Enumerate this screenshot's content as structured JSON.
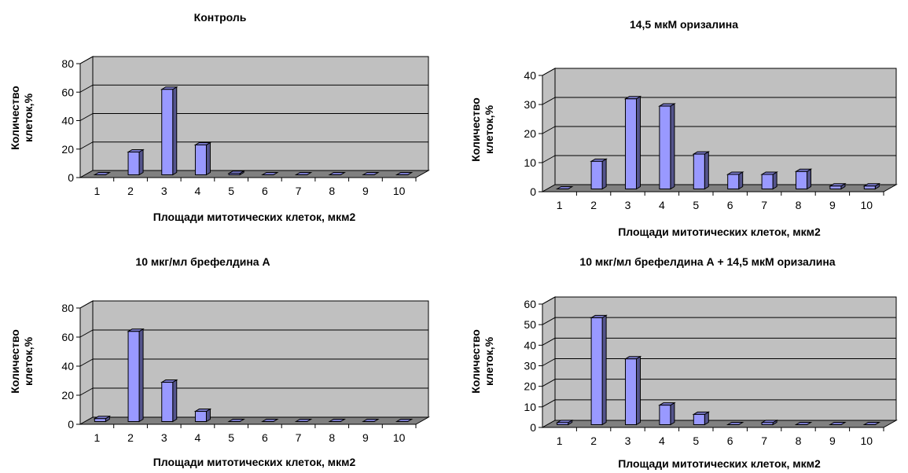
{
  "chart_data": [
    {
      "type": "bar",
      "title": "Контроль",
      "xlabel": "Площади митотических клеток, мкм2",
      "ylabel": [
        "Количество",
        "клеток,%"
      ],
      "ylim": [
        0,
        80
      ],
      "yticks": [
        "0",
        "20",
        "40",
        "60",
        "80"
      ],
      "categories": [
        "1",
        "2",
        "3",
        "4",
        "5",
        "6",
        "7",
        "8",
        "9",
        "10"
      ],
      "values": [
        0,
        16,
        60,
        21,
        1,
        0,
        0,
        0,
        0,
        0
      ],
      "grid": true,
      "colors": {
        "bar": "#9999ff",
        "plot_bg": "#c0c0c0",
        "floor": "#808080"
      }
    },
    {
      "type": "bar",
      "title": "14,5 мкМ оризалина",
      "xlabel": "Площади митотических клеток, мкм2",
      "ylabel": [
        "Количество",
        "клеток,%"
      ],
      "ylim": [
        0,
        40
      ],
      "yticks": [
        "0",
        "10",
        "20",
        "30",
        "40"
      ],
      "categories": [
        "1",
        "2",
        "3",
        "4",
        "5",
        "6",
        "7",
        "8",
        "9",
        "10"
      ],
      "values": [
        0,
        9.5,
        31,
        28.5,
        12,
        5,
        5,
        6,
        1,
        1
      ],
      "grid": true,
      "colors": {
        "bar": "#9999ff",
        "plot_bg": "#c0c0c0",
        "floor": "#808080"
      }
    },
    {
      "type": "bar",
      "title": "10 мкг/мл брефелдина А",
      "xlabel": "Площади митотических клеток, мкм2",
      "ylabel": [
        "Количество",
        "клеток,%"
      ],
      "ylim": [
        0,
        80
      ],
      "yticks": [
        "0",
        "20",
        "40",
        "60",
        "80"
      ],
      "categories": [
        "1",
        "2",
        "3",
        "4",
        "5",
        "6",
        "7",
        "8",
        "9",
        "10"
      ],
      "values": [
        2,
        62,
        27,
        7,
        0,
        0,
        0,
        0,
        0,
        0
      ],
      "grid": true,
      "colors": {
        "bar": "#9999ff",
        "plot_bg": "#c0c0c0",
        "floor": "#808080"
      }
    },
    {
      "type": "bar",
      "title": "10 мкг/мл брефелдина А + 14,5 мкМ оризалина",
      "xlabel": "Площади митотических клеток, мкм2",
      "ylabel": [
        "Количество",
        "клеток,%"
      ],
      "ylim": [
        0,
        60
      ],
      "yticks": [
        "0",
        "10",
        "20",
        "30",
        "40",
        "50",
        "60"
      ],
      "categories": [
        "1",
        "2",
        "3",
        "4",
        "5",
        "6",
        "7",
        "8",
        "9",
        "10"
      ],
      "values": [
        1,
        52,
        32,
        9.5,
        5,
        0,
        1,
        0,
        0,
        0
      ],
      "grid": true,
      "colors": {
        "bar": "#9999ff",
        "plot_bg": "#c0c0c0",
        "floor": "#808080"
      }
    }
  ]
}
